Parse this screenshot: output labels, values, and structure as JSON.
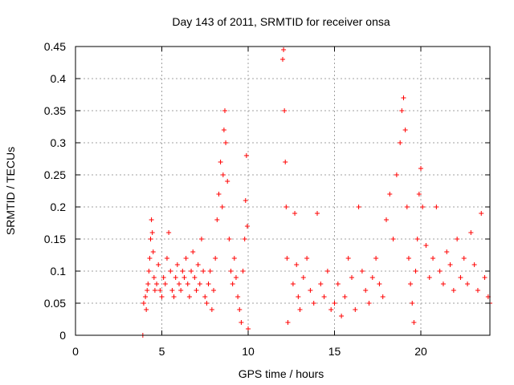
{
  "chart_data": {
    "type": "scatter",
    "title": "Day 143 of 2011, SRMTID for receiver onsa",
    "xlabel": "GPS time / hours",
    "ylabel": "SRMTID / TECUs",
    "xlim": [
      0,
      24
    ],
    "ylim": [
      0,
      0.45
    ],
    "xticks": [
      0,
      5,
      10,
      15,
      20
    ],
    "xtick_labels": [
      "0",
      "5",
      "10",
      "15",
      "20"
    ],
    "yticks": [
      0,
      0.05,
      0.1,
      0.15,
      0.2,
      0.25,
      0.3,
      0.35,
      0.4,
      0.45
    ],
    "ytick_labels": [
      "0",
      "0.05",
      "0.1",
      "0.15",
      "0.2",
      "0.25",
      "0.3",
      "0.35",
      "0.4",
      "0.45"
    ],
    "grid": true,
    "marker": "plus",
    "color": "#ff0000",
    "series": [
      {
        "name": "SRMTID",
        "x": [
          3.9,
          3.95,
          4.05,
          4.1,
          4.15,
          4.2,
          4.25,
          4.3,
          4.35,
          4.4,
          4.45,
          4.5,
          4.55,
          4.6,
          4.7,
          4.8,
          4.9,
          5.0,
          5.1,
          5.2,
          5.3,
          5.4,
          5.5,
          5.6,
          5.7,
          5.8,
          5.9,
          6.0,
          6.1,
          6.2,
          6.3,
          6.4,
          6.5,
          6.6,
          6.7,
          6.8,
          6.9,
          7.0,
          7.1,
          7.2,
          7.3,
          7.4,
          7.5,
          7.6,
          7.7,
          7.8,
          7.9,
          8.0,
          8.1,
          8.2,
          8.3,
          8.4,
          8.5,
          8.55,
          8.6,
          8.65,
          8.7,
          8.8,
          8.9,
          9.0,
          9.1,
          9.2,
          9.3,
          9.4,
          9.5,
          9.6,
          9.7,
          9.8,
          9.85,
          9.9,
          9.95,
          10.0,
          12.0,
          12.05,
          12.1,
          12.15,
          12.2,
          12.25,
          12.3,
          12.6,
          12.7,
          12.8,
          12.9,
          13.0,
          13.2,
          13.4,
          13.6,
          13.8,
          14.0,
          14.2,
          14.4,
          14.6,
          14.8,
          15.0,
          15.2,
          15.4,
          15.6,
          15.8,
          16.0,
          16.2,
          16.4,
          16.6,
          16.8,
          17.0,
          17.2,
          17.4,
          17.6,
          17.8,
          18.0,
          18.2,
          18.4,
          18.6,
          18.8,
          18.9,
          19.0,
          19.1,
          19.2,
          19.3,
          19.4,
          19.5,
          19.6,
          19.7,
          19.8,
          19.9,
          20.0,
          20.1,
          20.3,
          20.5,
          20.7,
          20.9,
          21.1,
          21.3,
          21.5,
          21.7,
          21.9,
          22.1,
          22.3,
          22.5,
          22.7,
          22.9,
          23.1,
          23.3,
          23.5,
          23.7,
          23.9,
          24.0
        ],
        "y": [
          0.0,
          0.05,
          0.06,
          0.04,
          0.07,
          0.08,
          0.1,
          0.12,
          0.15,
          0.18,
          0.16,
          0.13,
          0.09,
          0.07,
          0.08,
          0.11,
          0.07,
          0.06,
          0.09,
          0.08,
          0.12,
          0.16,
          0.1,
          0.07,
          0.06,
          0.09,
          0.11,
          0.08,
          0.07,
          0.1,
          0.09,
          0.12,
          0.08,
          0.06,
          0.1,
          0.13,
          0.09,
          0.07,
          0.11,
          0.08,
          0.15,
          0.1,
          0.06,
          0.05,
          0.08,
          0.1,
          0.04,
          0.07,
          0.12,
          0.18,
          0.22,
          0.27,
          0.2,
          0.25,
          0.32,
          0.35,
          0.3,
          0.24,
          0.15,
          0.1,
          0.08,
          0.12,
          0.09,
          0.06,
          0.04,
          0.02,
          0.1,
          0.15,
          0.21,
          0.28,
          0.17,
          0.01,
          0.43,
          0.445,
          0.35,
          0.27,
          0.2,
          0.12,
          0.02,
          0.08,
          0.19,
          0.11,
          0.06,
          0.04,
          0.09,
          0.12,
          0.07,
          0.05,
          0.19,
          0.08,
          0.06,
          0.1,
          0.04,
          0.05,
          0.08,
          0.03,
          0.06,
          0.12,
          0.09,
          0.04,
          0.2,
          0.1,
          0.07,
          0.05,
          0.09,
          0.12,
          0.08,
          0.06,
          0.18,
          0.22,
          0.15,
          0.25,
          0.3,
          0.35,
          0.37,
          0.32,
          0.2,
          0.12,
          0.08,
          0.05,
          0.02,
          0.1,
          0.15,
          0.22,
          0.26,
          0.2,
          0.14,
          0.09,
          0.12,
          0.2,
          0.1,
          0.08,
          0.13,
          0.11,
          0.07,
          0.15,
          0.09,
          0.12,
          0.08,
          0.16,
          0.11,
          0.07,
          0.19,
          0.09,
          0.06,
          0.05
        ]
      }
    ]
  }
}
